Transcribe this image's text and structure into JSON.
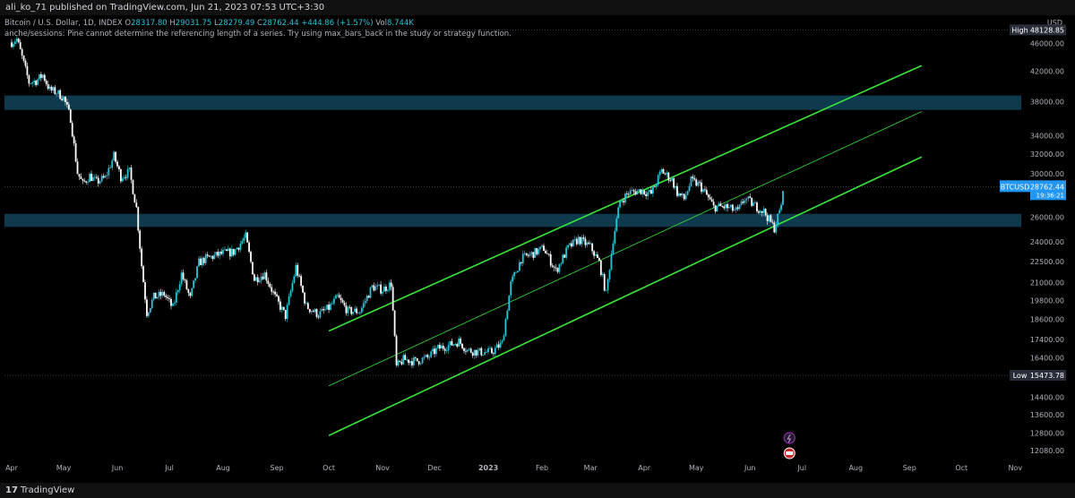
{
  "header": {
    "published_text": "ali_ko_71 published on TradingView.com, Jun 21, 2023 07:53 UTC+3:30"
  },
  "legend": {
    "symbol": "Bitcoin / U.S. Dollar, 1D, INDEX",
    "open_label": "O",
    "open": "28317.80",
    "high_label": "H",
    "high": "29031.75",
    "low_label": "L",
    "low": "28279.49",
    "close_label": "C",
    "close": "28762.44",
    "change": "+444.86 (+1.57%)",
    "vol_label": "Vol",
    "vol": "8.744K"
  },
  "warning": "anche/sessions: Pine cannot determine the referencing length of a series. Try using max_bars_back in the study or strategy function.",
  "footer": {
    "logo": "17",
    "brand": "TradingView"
  },
  "colors": {
    "up": "#26c6da",
    "down": "#ffffff",
    "channel": "#39e639",
    "zone": "#0d3a4d",
    "accent": "#2196f3"
  },
  "chart_data": {
    "type": "candlestick",
    "currency": "USD",
    "y_scale": "log",
    "ylim": [
      11600,
      50500
    ],
    "y_ticks": [
      "46000.00",
      "42000.00",
      "38000.00",
      "34000.00",
      "32000.00",
      "30000.00",
      "28000.00",
      "26000.00",
      "24000.00",
      "22500.00",
      "21000.00",
      "19800.00",
      "18600.00",
      "17400.00",
      "16400.00",
      "15400.00",
      "14400.00",
      "13600.00",
      "12800.00",
      "12080.00"
    ],
    "x_ticks": [
      "Apr",
      "May",
      "Jun",
      "Jul",
      "Aug",
      "Sep",
      "Oct",
      "Nov",
      "Dec",
      "2023",
      "Feb",
      "Mar",
      "Apr",
      "May",
      "Jun",
      "Jul",
      "Aug",
      "Sep",
      "Oct",
      "Nov"
    ],
    "x_tick_dates": [
      "2022-04-01",
      "2022-05-01",
      "2022-06-01",
      "2022-07-01",
      "2022-08-01",
      "2022-09-01",
      "2022-10-01",
      "2022-11-01",
      "2022-12-01",
      "2023-01-01",
      "2023-02-01",
      "2023-03-01",
      "2023-04-01",
      "2023-05-01",
      "2023-06-01",
      "2023-07-01",
      "2023-08-01",
      "2023-09-01",
      "2023-10-01",
      "2023-11-01"
    ],
    "xlim": [
      "2022-04-01",
      "2023-11-05"
    ],
    "high_marker": {
      "label": "High",
      "value": "48128.85"
    },
    "low_marker": {
      "label": "Low",
      "value": "15473.78"
    },
    "last_price": {
      "symbol": "BTCUSD",
      "value": "28762.44",
      "countdown": "19:36:21"
    },
    "resistance_zone": [
      37000,
      38800
    ],
    "support_zone": [
      25200,
      26300
    ],
    "channel": {
      "upper": [
        [
          "2022-10-01",
          17900
        ],
        [
          "2023-09-08",
          42800
        ]
      ],
      "middle": [
        [
          "2022-10-01",
          14950
        ],
        [
          "2023-09-08",
          36800
        ]
      ],
      "lower": [
        [
          "2022-10-01",
          12700
        ],
        [
          "2023-09-08",
          31700
        ]
      ]
    },
    "closes": [
      [
        "2022-04-01",
        46200
      ],
      [
        "2022-04-04",
        46700
      ],
      [
        "2022-04-07",
        44000
      ],
      [
        "2022-04-11",
        40500
      ],
      [
        "2022-04-15",
        40700
      ],
      [
        "2022-04-19",
        41500
      ],
      [
        "2022-04-23",
        39500
      ],
      [
        "2022-04-27",
        39200
      ],
      [
        "2022-05-01",
        38500
      ],
      [
        "2022-05-05",
        36000
      ],
      [
        "2022-05-09",
        30100
      ],
      [
        "2022-05-12",
        29000
      ],
      [
        "2022-05-16",
        29800
      ],
      [
        "2022-05-20",
        29200
      ],
      [
        "2022-05-25",
        29600
      ],
      [
        "2022-05-30",
        31800
      ],
      [
        "2022-06-03",
        29700
      ],
      [
        "2022-06-08",
        30200
      ],
      [
        "2022-06-12",
        26800
      ],
      [
        "2022-06-15",
        22200
      ],
      [
        "2022-06-18",
        19000
      ],
      [
        "2022-06-22",
        20000
      ],
      [
        "2022-06-28",
        20200
      ],
      [
        "2022-07-03",
        19300
      ],
      [
        "2022-07-08",
        21600
      ],
      [
        "2022-07-13",
        19900
      ],
      [
        "2022-07-18",
        22400
      ],
      [
        "2022-07-22",
        22700
      ],
      [
        "2022-07-27",
        22900
      ],
      [
        "2022-08-01",
        23100
      ],
      [
        "2022-08-07",
        23200
      ],
      [
        "2022-08-14",
        24400
      ],
      [
        "2022-08-19",
        21200
      ],
      [
        "2022-08-25",
        21600
      ],
      [
        "2022-08-31",
        20000
      ],
      [
        "2022-09-06",
        18800
      ],
      [
        "2022-09-12",
        22100
      ],
      [
        "2022-09-18",
        19400
      ],
      [
        "2022-09-25",
        18900
      ],
      [
        "2022-10-01",
        19300
      ],
      [
        "2022-10-06",
        20000
      ],
      [
        "2022-10-12",
        19100
      ],
      [
        "2022-10-19",
        19100
      ],
      [
        "2022-10-26",
        20700
      ],
      [
        "2022-11-01",
        20500
      ],
      [
        "2022-11-06",
        20900
      ],
      [
        "2022-11-09",
        15900
      ],
      [
        "2022-11-13",
        16300
      ],
      [
        "2022-11-20",
        16200
      ],
      [
        "2022-11-27",
        16400
      ],
      [
        "2022-12-03",
        16900
      ],
      [
        "2022-12-10",
        17100
      ],
      [
        "2022-12-15",
        17300
      ],
      [
        "2022-12-20",
        16800
      ],
      [
        "2022-12-27",
        16700
      ],
      [
        "2023-01-03",
        16700
      ],
      [
        "2023-01-09",
        17200
      ],
      [
        "2023-01-14",
        20900
      ],
      [
        "2023-01-20",
        22700
      ],
      [
        "2023-01-27",
        23100
      ],
      [
        "2023-02-02",
        23500
      ],
      [
        "2023-02-09",
        21800
      ],
      [
        "2023-02-16",
        23500
      ],
      [
        "2023-02-22",
        24200
      ],
      [
        "2023-03-01",
        23600
      ],
      [
        "2023-03-06",
        22400
      ],
      [
        "2023-03-10",
        20200
      ],
      [
        "2023-03-14",
        24200
      ],
      [
        "2023-03-18",
        27400
      ],
      [
        "2023-03-23",
        28200
      ],
      [
        "2023-03-30",
        28400
      ],
      [
        "2023-04-05",
        28100
      ],
      [
        "2023-04-11",
        30300
      ],
      [
        "2023-04-17",
        29400
      ],
      [
        "2023-04-20",
        28200
      ],
      [
        "2023-04-24",
        27600
      ],
      [
        "2023-04-28",
        29300
      ],
      [
        "2023-05-03",
        28900
      ],
      [
        "2023-05-08",
        27700
      ],
      [
        "2023-05-11",
        26900
      ],
      [
        "2023-05-18",
        26900
      ],
      [
        "2023-05-25",
        26500
      ],
      [
        "2023-05-29",
        27700
      ],
      [
        "2023-06-04",
        27000
      ],
      [
        "2023-06-09",
        26500
      ],
      [
        "2023-06-15",
        25100
      ],
      [
        "2023-06-18",
        26500
      ],
      [
        "2023-06-21",
        28762
      ]
    ]
  }
}
